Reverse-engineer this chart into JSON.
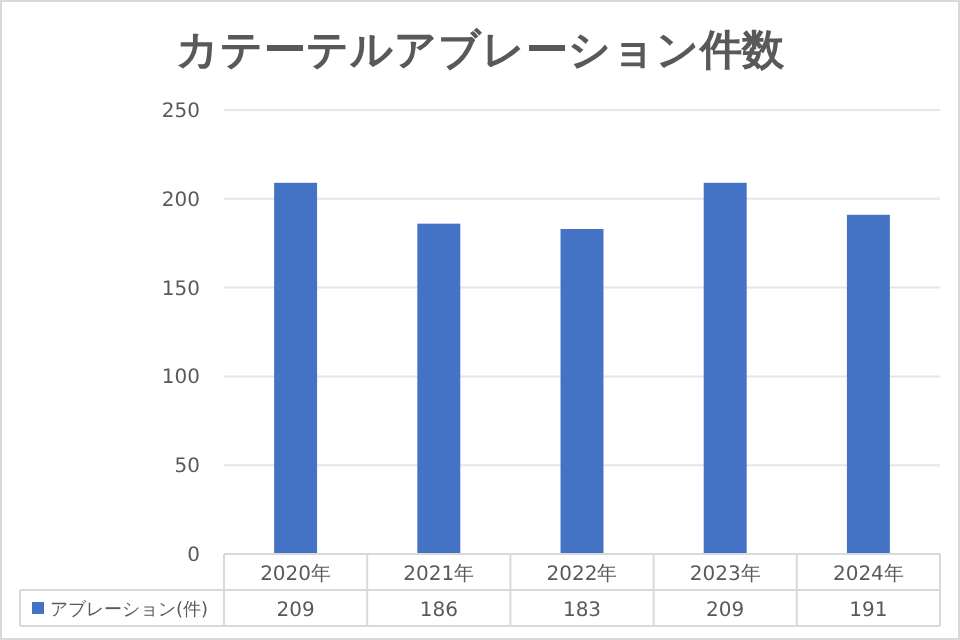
{
  "chart_data": {
    "type": "bar",
    "title": "カテーテルアブレーション件数",
    "categories": [
      "2020年",
      "2021年",
      "2022年",
      "2023年",
      "2024年"
    ],
    "series": [
      {
        "name": "アブレーション(件)",
        "color": "#4472c4",
        "values": [
          209,
          186,
          183,
          209,
          191
        ]
      }
    ],
    "ylim": [
      0,
      250
    ],
    "yticks": [
      0,
      50,
      100,
      150,
      200,
      250
    ],
    "grid": "y",
    "data_labels": true,
    "legend": "bottom"
  }
}
